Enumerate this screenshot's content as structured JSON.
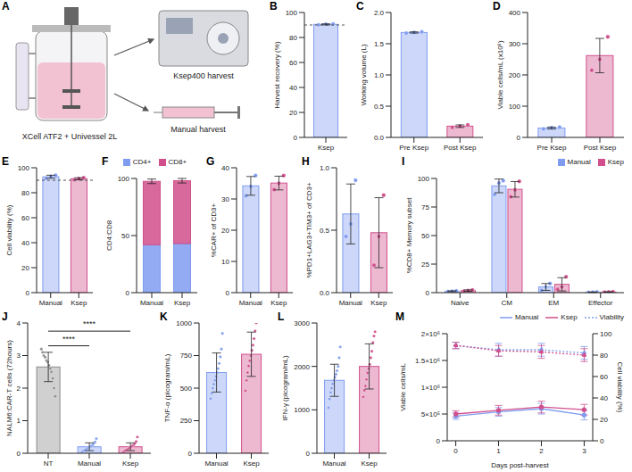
{
  "diagram": {
    "letter": "A",
    "vessel": "XCell ATF2 + Univessel 2L",
    "device": "Ksep400 harvest",
    "manual": "Manual harvest"
  },
  "chart_data": [
    {
      "letter": "B",
      "type": "bar",
      "categories": [
        "Ksep"
      ],
      "values": [
        90.5
      ],
      "errors": [
        0.4
      ],
      "points": [
        [
          90.1,
          90.6,
          90.8
        ]
      ],
      "colors": [
        "#7f9cf0"
      ],
      "ylim": [
        0,
        100
      ],
      "yticks": [
        0,
        20,
        40,
        60,
        80,
        100
      ],
      "y_label": "Harvest recovery (%)",
      "threshold": 90
    },
    {
      "letter": "C",
      "type": "bar",
      "categories": [
        "Pre Ksep",
        "Post Ksep"
      ],
      "values": [
        1.68,
        0.18
      ],
      "errors": [
        0.01,
        0.02
      ],
      "points": [
        [
          1.67,
          1.68,
          1.69
        ],
        [
          0.16,
          0.18,
          0.2
        ]
      ],
      "colors": [
        "#7f9cf0",
        "#d14f8c"
      ],
      "ylim": [
        0,
        2
      ],
      "yticks": [
        {
          "value": 0,
          "label": "0.0"
        },
        0.5,
        {
          "value": 1,
          "label": "1.0"
        },
        1.5,
        {
          "value": 2,
          "label": "2.0"
        }
      ],
      "y_label": "Working volume (L)"
    },
    {
      "letter": "D",
      "type": "bar",
      "categories": [
        "Pre Ksep",
        "Post Ksep"
      ],
      "values": [
        30,
        262
      ],
      "errors": [
        3,
        55
      ],
      "points": [
        [
          27,
          31,
          33
        ],
        [
          215,
          250,
          322
        ]
      ],
      "colors": [
        "#7f9cf0",
        "#d14f8c"
      ],
      "ylim": [
        0,
        400
      ],
      "yticks": [
        0,
        100,
        200,
        300,
        400
      ],
      "y_label": "Viable cells/mL (x10⁶)"
    },
    {
      "letter": "E",
      "type": "bar",
      "categories": [
        "Manual",
        "Ksep"
      ],
      "values": [
        92.8,
        91.2
      ],
      "errors": [
        1.2,
        0.8
      ],
      "points": [
        [
          91.5,
          93,
          94
        ],
        [
          90.4,
          91.2,
          92
        ]
      ],
      "colors": [
        "#7f9cf0",
        "#d14f8c"
      ],
      "ylim": [
        0,
        100
      ],
      "yticks": [
        0,
        20,
        40,
        60,
        80,
        100
      ],
      "y_label": "Cell viability (%)",
      "threshold": 90
    },
    {
      "letter": "F",
      "type": "bar",
      "stacked": true,
      "legend": "top",
      "categories": [
        "Manual",
        "Ksep"
      ],
      "series": [
        {
          "name": "CD4+",
          "color": "#7f9cf0",
          "values": [
            42,
            43
          ]
        },
        {
          "name": "CD8+",
          "color": "#d14f8c",
          "values": [
            55.5,
            55
          ],
          "errors": [
            2,
            2
          ]
        }
      ],
      "ylim": [
        0,
        100
      ],
      "yticks": [
        0,
        50,
        100
      ],
      "y_label": "CD4:CD8"
    },
    {
      "letter": "G",
      "type": "bar",
      "categories": [
        "Manual",
        "Ksep"
      ],
      "values": [
        34.2,
        35.1
      ],
      "errors": [
        3,
        2.2
      ],
      "points": [
        [
          31,
          34,
          37.5
        ],
        [
          33,
          35,
          37.5
        ]
      ],
      "colors": [
        "#7f9cf0",
        "#d14f8c"
      ],
      "ylim": [
        0,
        40
      ],
      "yticks": [
        0,
        10,
        20,
        30,
        40
      ],
      "y_label": "%CAR+ of CD3+"
    },
    {
      "letter": "H",
      "type": "bar",
      "categories": [
        "Manual",
        "Ksep"
      ],
      "values": [
        0.63,
        0.48
      ],
      "errors": [
        0.24,
        0.28
      ],
      "points": [
        [
          0.45,
          0.55,
          0.9
        ],
        [
          0.22,
          0.45,
          0.78
        ]
      ],
      "colors": [
        "#7f9cf0",
        "#d14f8c"
      ],
      "ylim": [
        0,
        1
      ],
      "yticks": [
        {
          "value": 0,
          "label": "0.0"
        },
        0.5,
        {
          "value": 1,
          "label": "1.0"
        }
      ],
      "y_label": "%PD1+LAG3+TIM3+ of CD3+"
    },
    {
      "letter": "I",
      "type": "bar",
      "legend": "top-right",
      "categories": [
        "Naive",
        "CM",
        "EM",
        "Effector"
      ],
      "series": [
        {
          "name": "Manual",
          "color": "#7f9cf0",
          "values": [
            1.2,
            93.5,
            5,
            0.4
          ],
          "errors": [
            0.4,
            6,
            3,
            0.2
          ],
          "points": [
            [
              0.8,
              1.2,
              1.6
            ],
            [
              86,
              96,
              98
            ],
            [
              2,
              5,
              8
            ],
            [
              0.2,
              0.4,
              0.6
            ]
          ]
        },
        {
          "name": "Ksep",
          "color": "#d14f8c",
          "values": [
            1.8,
            90.5,
            7.3,
            0.6
          ],
          "errors": [
            0.6,
            6.8,
            5.8,
            0.2
          ],
          "points": [
            [
              1.2,
              1.8,
              2.4
            ],
            [
              84,
              90,
              97.5
            ],
            [
              3,
              5,
              14
            ],
            [
              0.4,
              0.6,
              0.8
            ]
          ]
        }
      ],
      "ylim": [
        0,
        100
      ],
      "yticks": [
        0,
        25,
        50,
        75,
        100
      ],
      "y_label": "%CD8+ Memory subset"
    },
    {
      "letter": "J",
      "type": "bar",
      "categories": [
        "NT",
        "Manual",
        "Ksep"
      ],
      "values": [
        2.65,
        0.2,
        0.2
      ],
      "errors": [
        0.45,
        0.12,
        0.12
      ],
      "points": [
        [
          3.2,
          3.1,
          3.0,
          2.95,
          2.85,
          2.8,
          2.7,
          2.6,
          2.5,
          2.3,
          2.0,
          1.75
        ],
        [
          0.05,
          0.08,
          0.1,
          0.12,
          0.15,
          0.18,
          0.2,
          0.22,
          0.25,
          0.3,
          0.35,
          0.45
        ],
        [
          0.04,
          0.07,
          0.1,
          0.12,
          0.14,
          0.17,
          0.2,
          0.23,
          0.26,
          0.3,
          0.36,
          0.5
        ]
      ],
      "colors": [
        "#8a8a8a",
        "#7f9cf0",
        "#d14f8c"
      ],
      "ylim": [
        0,
        4
      ],
      "yticks": [
        0,
        1,
        2,
        3,
        4
      ],
      "y_label": "NALM6:CAR-T cells (72hours)",
      "comparisons": [
        {
          "from": "NT",
          "to": "Manual",
          "y": 3.3,
          "label": "****"
        },
        {
          "from": "NT",
          "to": "Ksep",
          "y": 3.75,
          "label": "****"
        }
      ]
    },
    {
      "letter": "K",
      "type": "bar",
      "categories": [
        "Manual",
        "Ksep"
      ],
      "values": [
        620,
        760
      ],
      "errors": [
        150,
        170
      ],
      "points": [
        [
          420,
          460,
          500,
          530,
          560,
          590,
          620,
          650,
          690,
          740,
          800,
          920
        ],
        [
          480,
          560,
          620,
          670,
          710,
          750,
          790,
          830,
          880,
          940,
          1000,
          1060
        ]
      ],
      "colors": [
        "#7f9cf0",
        "#d14f8c"
      ],
      "ylim": [
        0,
        1000
      ],
      "yticks": [
        0,
        250,
        500,
        750,
        1000
      ],
      "y_label": "TNF-α (picogram/mL)"
    },
    {
      "letter": "L",
      "type": "bar",
      "categories": [
        "Manual",
        "Ksep"
      ],
      "values": [
        1680,
        2000
      ],
      "errors": [
        370,
        520
      ],
      "points": [
        [
          1050,
          1250,
          1400,
          1500,
          1600,
          1680,
          1750,
          1820,
          1900,
          2000,
          2200,
          2450
        ],
        [
          1300,
          1450,
          1550,
          1700,
          1850,
          1950,
          2050,
          2200,
          2350,
          2550,
          2700,
          2800
        ]
      ],
      "colors": [
        "#7f9cf0",
        "#d14f8c"
      ],
      "ylim": [
        0,
        3000
      ],
      "yticks": [
        0,
        1000,
        2000,
        3000
      ],
      "y_label": "IFN-γ (picogram/mL)"
    },
    {
      "letter": "M",
      "type": "line",
      "legend": "top-right",
      "x": [
        0,
        1,
        2,
        3
      ],
      "xlim": [
        -0.2,
        3.2
      ],
      "xticks": [
        0,
        1,
        2,
        3
      ],
      "x_label": "Days post-harvest",
      "ylim": [
        0,
        2000000
      ],
      "yticks": [
        0,
        {
          "value": 500000,
          "label": "5×10⁵"
        },
        {
          "value": 1000000,
          "label": "1×10⁶"
        },
        {
          "value": 1500000,
          "label": "1.5×10⁶"
        },
        {
          "value": 2000000,
          "label": "2×10⁶"
        }
      ],
      "y_label": "Viable cells/mL",
      "y2lim": [
        0,
        100
      ],
      "y2ticks": [
        0,
        20,
        40,
        60,
        80,
        100
      ],
      "y2_label": "Cell viability (%)",
      "series": [
        {
          "name": "Manual",
          "color": "#7f9cf0",
          "marker": "circle",
          "line_style": "solid",
          "values": [
            460000,
            540000,
            600000,
            480000
          ],
          "errors": [
            60000,
            80000,
            100000,
            90000
          ]
        },
        {
          "name": "Ksep",
          "color": "#d14f8c",
          "marker": "circle",
          "line_style": "solid",
          "values": [
            500000,
            570000,
            630000,
            580000
          ],
          "errors": [
            60000,
            90000,
            110000,
            100000
          ]
        },
        {
          "name": "Viability",
          "color": "#7f9cf0",
          "axis": "y2",
          "marker": "circle",
          "line_style": "dotted",
          "values": [
            89,
            85,
            85,
            82
          ],
          "errors": [
            3,
            6,
            6,
            6
          ]
        },
        {
          "name": "Viability",
          "color": "#d14f8c",
          "axis": "y2",
          "marker": "circle",
          "line_style": "dotted",
          "values": [
            89,
            84,
            83,
            80
          ],
          "errors": [
            3,
            5,
            6,
            6
          ]
        }
      ]
    }
  ]
}
